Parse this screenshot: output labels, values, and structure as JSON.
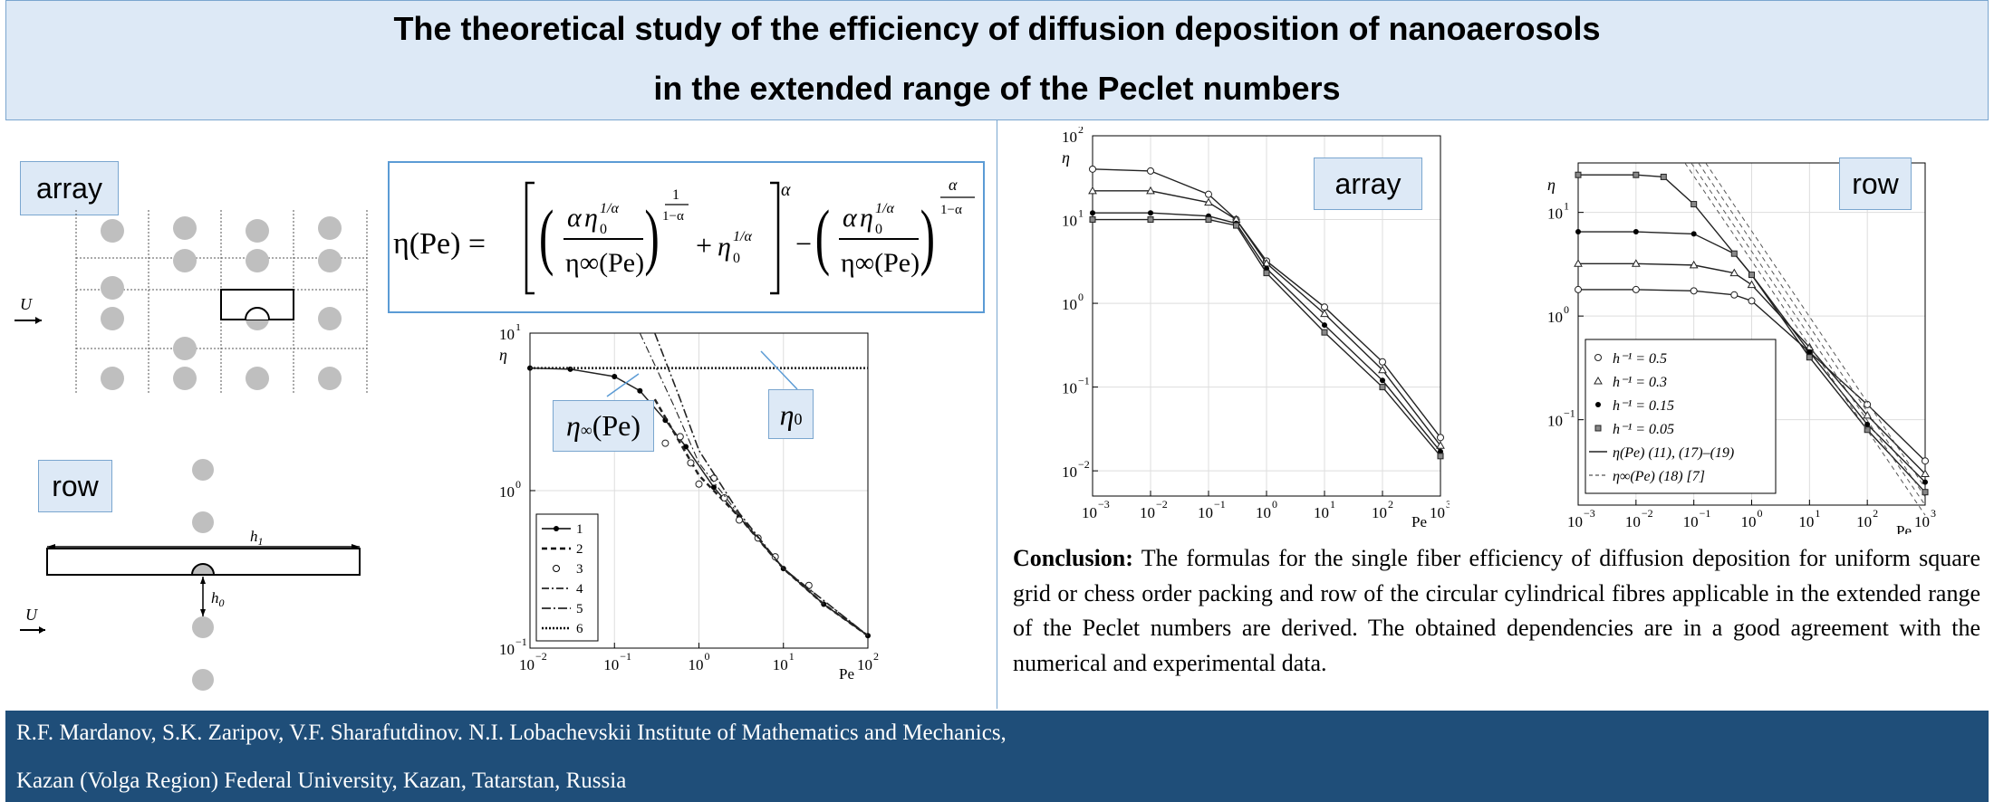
{
  "header": {
    "title_line1": "The theoretical study of the efficiency of diffusion deposition of nanoaerosols",
    "title_line2": "in the extended range of the Peclet numbers"
  },
  "left_panel": {
    "array_label": "array",
    "row_label": "row",
    "flow_symbol": "U",
    "h1_label": "h",
    "h1_sub": "1",
    "h0_label": "h",
    "h0_sub": "0"
  },
  "formula": {
    "lhs": "η(Pe) =",
    "alpha": "α",
    "eta0": "η",
    "sub0": "0",
    "exp_1_alpha": "1/α",
    "one": "1",
    "one_minus_alpha": "1−α",
    "eta_inf_pe": "η∞(Pe)",
    "plus": "+",
    "minus": "−"
  },
  "chart_middle": {
    "ylabel": "η",
    "xlabel": "Pe",
    "x_ticks": [
      "10",
      "10",
      "10",
      "10",
      "10"
    ],
    "x_tick_exps": [
      "−2",
      "−1",
      "0",
      "1",
      "2"
    ],
    "y_ticks": [
      "10",
      "10",
      "10"
    ],
    "y_tick_exps": [
      "1",
      "0",
      "−1"
    ],
    "callout_eta_inf": "η∞(Pe)",
    "callout_eta0": "η0",
    "legend": [
      "1",
      "2",
      "3",
      "4",
      "5",
      "6"
    ]
  },
  "chart_array": {
    "label": "array",
    "ylabel": "η",
    "xlabel": "Pe",
    "x_tick_exps": [
      "−3",
      "−2",
      "−1",
      "0",
      "1",
      "2",
      "3"
    ],
    "y_tick_exps": [
      "2",
      "1",
      "0",
      "−1",
      "−2"
    ]
  },
  "chart_row": {
    "label": "row",
    "ylabel": "η",
    "xlabel": "Pe",
    "x_tick_exps": [
      "−3",
      "−2",
      "−1",
      "0",
      "1",
      "2",
      "3"
    ],
    "y_tick_exps": [
      "1",
      "0",
      "−1"
    ],
    "legend": [
      "h⁻¹ = 0.5",
      "h⁻¹ = 0.3",
      "h⁻¹ = 0.15",
      "h⁻¹ = 0.05",
      "η(Pe) (11), (17)–(19)",
      "η∞(Pe) (18) [7]"
    ]
  },
  "chart_data": [
    {
      "type": "line",
      "title": "",
      "xlabel": "Pe",
      "ylabel": "η",
      "xscale": "log",
      "yscale": "log",
      "xlim": [
        0.01,
        100
      ],
      "ylim": [
        0.1,
        10
      ],
      "legend_position": "bottom-left",
      "series": [
        {
          "name": "1",
          "x": [
            0.01,
            0.03,
            0.1,
            0.2,
            0.4,
            0.7,
            1.5,
            3,
            10,
            30,
            100
          ],
          "y": [
            6.0,
            5.9,
            5.3,
            4.3,
            2.8,
            1.9,
            1.05,
            0.68,
            0.32,
            0.19,
            0.12
          ]
        },
        {
          "name": "2",
          "x": [
            0.3,
            1,
            3,
            10,
            30,
            100
          ],
          "y": [
            3.8,
            1.25,
            0.68,
            0.32,
            0.19,
            0.12
          ]
        },
        {
          "name": "3",
          "x": [
            0.4,
            0.6,
            0.8,
            1,
            1.5,
            2,
            3,
            5,
            8,
            20
          ],
          "y": [
            2.0,
            2.2,
            1.5,
            1.1,
            1.2,
            0.9,
            0.65,
            0.5,
            0.38,
            0.25
          ]
        },
        {
          "name": "4",
          "x": [
            0.2,
            0.5,
            1,
            3,
            10,
            100
          ],
          "y": [
            10,
            3.5,
            1.5,
            0.7,
            0.32,
            0.12
          ]
        },
        {
          "name": "5",
          "x": [
            0.3,
            0.6,
            1,
            3,
            10,
            100
          ],
          "y": [
            10,
            3.8,
            1.8,
            0.72,
            0.32,
            0.12
          ]
        },
        {
          "name": "6",
          "x": [
            0.01,
            100
          ],
          "y": [
            6.0,
            6.0
          ]
        }
      ]
    },
    {
      "type": "line",
      "title": "",
      "xlabel": "Pe",
      "ylabel": "η",
      "xscale": "log",
      "yscale": "log",
      "xlim": [
        0.001,
        1000
      ],
      "ylim": [
        0.005,
        100
      ],
      "series": [
        {
          "x": [
            0.001,
            0.01,
            0.1,
            0.3,
            1,
            10,
            100,
            1000
          ],
          "y": [
            40,
            38,
            20,
            10,
            3.2,
            0.9,
            0.2,
            0.025
          ]
        },
        {
          "x": [
            0.001,
            0.01,
            0.1,
            0.3,
            1,
            10,
            100,
            1000
          ],
          "y": [
            22,
            22,
            16,
            10,
            3.0,
            0.75,
            0.16,
            0.02
          ]
        },
        {
          "x": [
            0.001,
            0.01,
            0.1,
            0.3,
            1,
            10,
            100,
            1000
          ],
          "y": [
            12,
            12,
            11,
            9,
            2.6,
            0.55,
            0.12,
            0.017
          ]
        },
        {
          "x": [
            0.001,
            0.01,
            0.1,
            0.3,
            1,
            10,
            100,
            1000
          ],
          "y": [
            10,
            10,
            10,
            8.5,
            2.3,
            0.45,
            0.1,
            0.015
          ]
        }
      ]
    },
    {
      "type": "line",
      "title": "",
      "xlabel": "Pe",
      "ylabel": "η",
      "xscale": "log",
      "yscale": "log",
      "xlim": [
        0.001,
        1000
      ],
      "ylim": [
        0.015,
        30
      ],
      "legend_position": "bottom-left",
      "series": [
        {
          "name": "h⁻¹ = 0.5",
          "x": [
            0.001,
            0.01,
            0.1,
            0.5,
            1,
            10,
            100,
            1000
          ],
          "y": [
            1.8,
            1.8,
            1.75,
            1.6,
            1.4,
            0.45,
            0.14,
            0.04
          ]
        },
        {
          "name": "h⁻¹ = 0.3",
          "x": [
            0.001,
            0.01,
            0.1,
            0.5,
            1,
            10,
            100,
            1000
          ],
          "y": [
            3.2,
            3.2,
            3.1,
            2.6,
            2.0,
            0.5,
            0.11,
            0.03
          ]
        },
        {
          "name": "h⁻¹ = 0.15",
          "x": [
            0.001,
            0.01,
            0.1,
            0.5,
            1,
            10,
            100,
            1000
          ],
          "y": [
            6.5,
            6.5,
            6.2,
            4.0,
            2.5,
            0.45,
            0.09,
            0.025
          ]
        },
        {
          "name": "h⁻¹ = 0.05",
          "x": [
            0.001,
            0.01,
            0.03,
            0.1,
            0.5,
            1,
            10,
            100,
            1000
          ],
          "y": [
            23,
            23,
            22,
            12,
            4.0,
            2.5,
            0.4,
            0.08,
            0.02
          ]
        }
      ]
    }
  ],
  "conclusion": {
    "lead": "Conclusion:",
    "text": " The formulas for the single fiber efficiency of diffusion deposition for uniform square grid or chess order packing and row of the circular cylindrical fibres applicable in the extended range of the Peclet numbers are derived. The obtained dependencies are in a good agreement with the numerical and experimental data."
  },
  "footer": {
    "line1": "R.F. Mardanov, S.K. Zaripov, V.F. Sharafutdinov. N.I. Lobachevskii Institute of Mathematics and Mechanics,",
    "line2": "Kazan (Volga Region) Federal University, Kazan, Tatarstan, Russia"
  },
  "colors": {
    "header_bg": "#dde9f6",
    "border_blue": "#5b9bd5",
    "footer_bg": "#1f4e79",
    "circle_fill": "#bfbfbf"
  }
}
